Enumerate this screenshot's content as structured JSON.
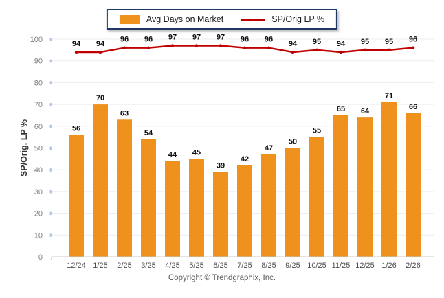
{
  "legend": {
    "bar_label": "Avg Days on Market",
    "line_label": "SP/Orig LP %"
  },
  "y_axis_title": "SP/Orig. LP %",
  "footer": "Copyright © Trendgraphix, Inc.",
  "colors": {
    "bar": "#EF911D",
    "line": "#C00000",
    "grid": "#ECECEC",
    "axis": "#C9C9C9",
    "axis_tick": "#B0B0B0",
    "y_edge_tick": "#B3C6E7",
    "data_label": "#111111",
    "y_tick_text": "#7F7F7F",
    "x_tick_text": "#4D4D4D",
    "y_title_text": "#333333",
    "legend_border": "#1F3966"
  },
  "chart_data": {
    "type": "bar",
    "categories": [
      "12/24",
      "1/25",
      "2/25",
      "3/25",
      "4/25",
      "5/25",
      "6/25",
      "7/25",
      "8/25",
      "9/25",
      "10/25",
      "11/25",
      "12/25",
      "1/26",
      "2/26"
    ],
    "series": [
      {
        "name": "Avg Days on Market",
        "type": "bar",
        "values": [
          56,
          70,
          63,
          54,
          44,
          45,
          39,
          42,
          47,
          50,
          55,
          65,
          64,
          71,
          66
        ]
      },
      {
        "name": "SP/Orig LP %",
        "type": "line",
        "values": [
          94,
          94,
          96,
          96,
          97,
          97,
          97,
          96,
          96,
          94,
          95,
          94,
          95,
          95,
          96
        ]
      }
    ],
    "title": "",
    "xlabel": "",
    "ylabel": "SP/Orig. LP %",
    "ylim": [
      0,
      100
    ],
    "y_ticks": [
      0,
      10,
      20,
      30,
      40,
      50,
      60,
      70,
      80,
      90,
      100
    ],
    "grid": true,
    "legend_position": "top",
    "data_labels": true
  }
}
